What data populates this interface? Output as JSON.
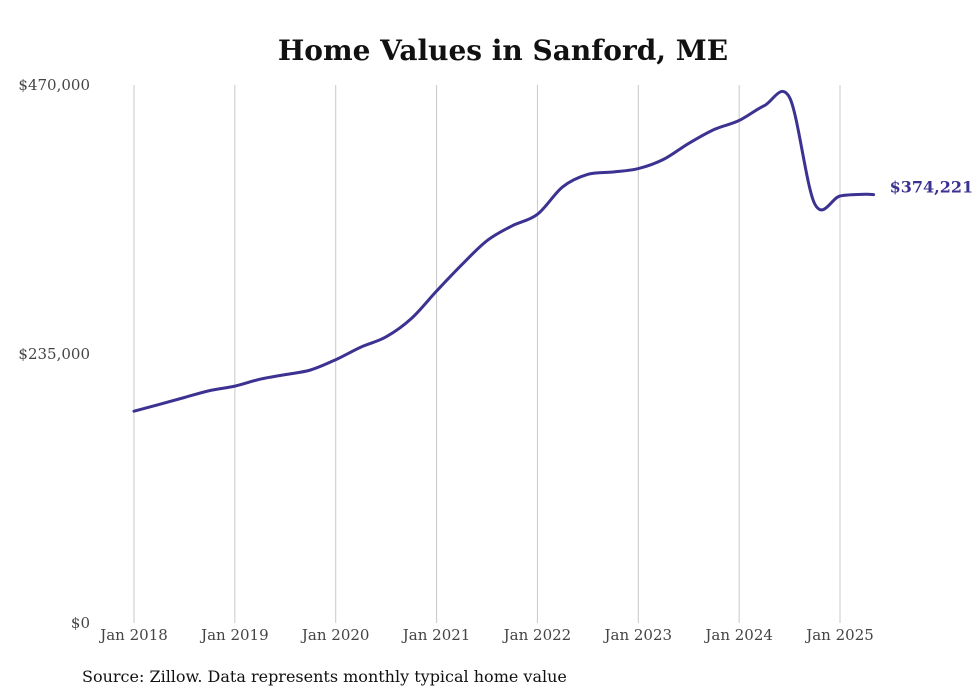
{
  "chart_data": {
    "type": "line",
    "title": "Home Values in Sanford, ME",
    "xlabel": "",
    "ylabel": "",
    "x_ticks": [
      "Jan 2018",
      "Jan 2019",
      "Jan 2020",
      "Jan 2021",
      "Jan 2022",
      "Jan 2023",
      "Jan 2024",
      "Jan 2025"
    ],
    "y_ticks": [
      "$0",
      "$235,000",
      "$470,000"
    ],
    "ylim": [
      0,
      470000
    ],
    "xlim": [
      "2018-01",
      "2025-06"
    ],
    "grid": "vertical",
    "line_color": "#3b3291",
    "end_label": "$374,221",
    "series": [
      {
        "x": [
          "2018-01",
          "2018-04",
          "2018-07",
          "2018-10",
          "2019-01",
          "2019-04",
          "2019-07",
          "2019-10",
          "2020-01",
          "2020-04",
          "2020-07",
          "2020-10",
          "2021-01",
          "2021-04",
          "2021-07",
          "2021-10",
          "2022-01",
          "2022-04",
          "2022-07",
          "2022-10",
          "2023-01",
          "2023-04",
          "2023-07",
          "2023-10",
          "2024-01",
          "2024-04",
          "2024-07",
          "2024-10",
          "2025-01",
          "2025-04",
          "2025-05"
        ],
        "y": [
          185000,
          191000,
          197000,
          203000,
          207000,
          213000,
          217000,
          221000,
          230000,
          241000,
          250000,
          266000,
          290000,
          313000,
          334000,
          347000,
          357000,
          381000,
          392000,
          394000,
          397000,
          405000,
          419000,
          431000,
          439000,
          452000,
          459000,
          366000,
          373000,
          374500,
          374221
        ]
      }
    ]
  },
  "source_note": "Source: Zillow. Data represents monthly typical home value"
}
